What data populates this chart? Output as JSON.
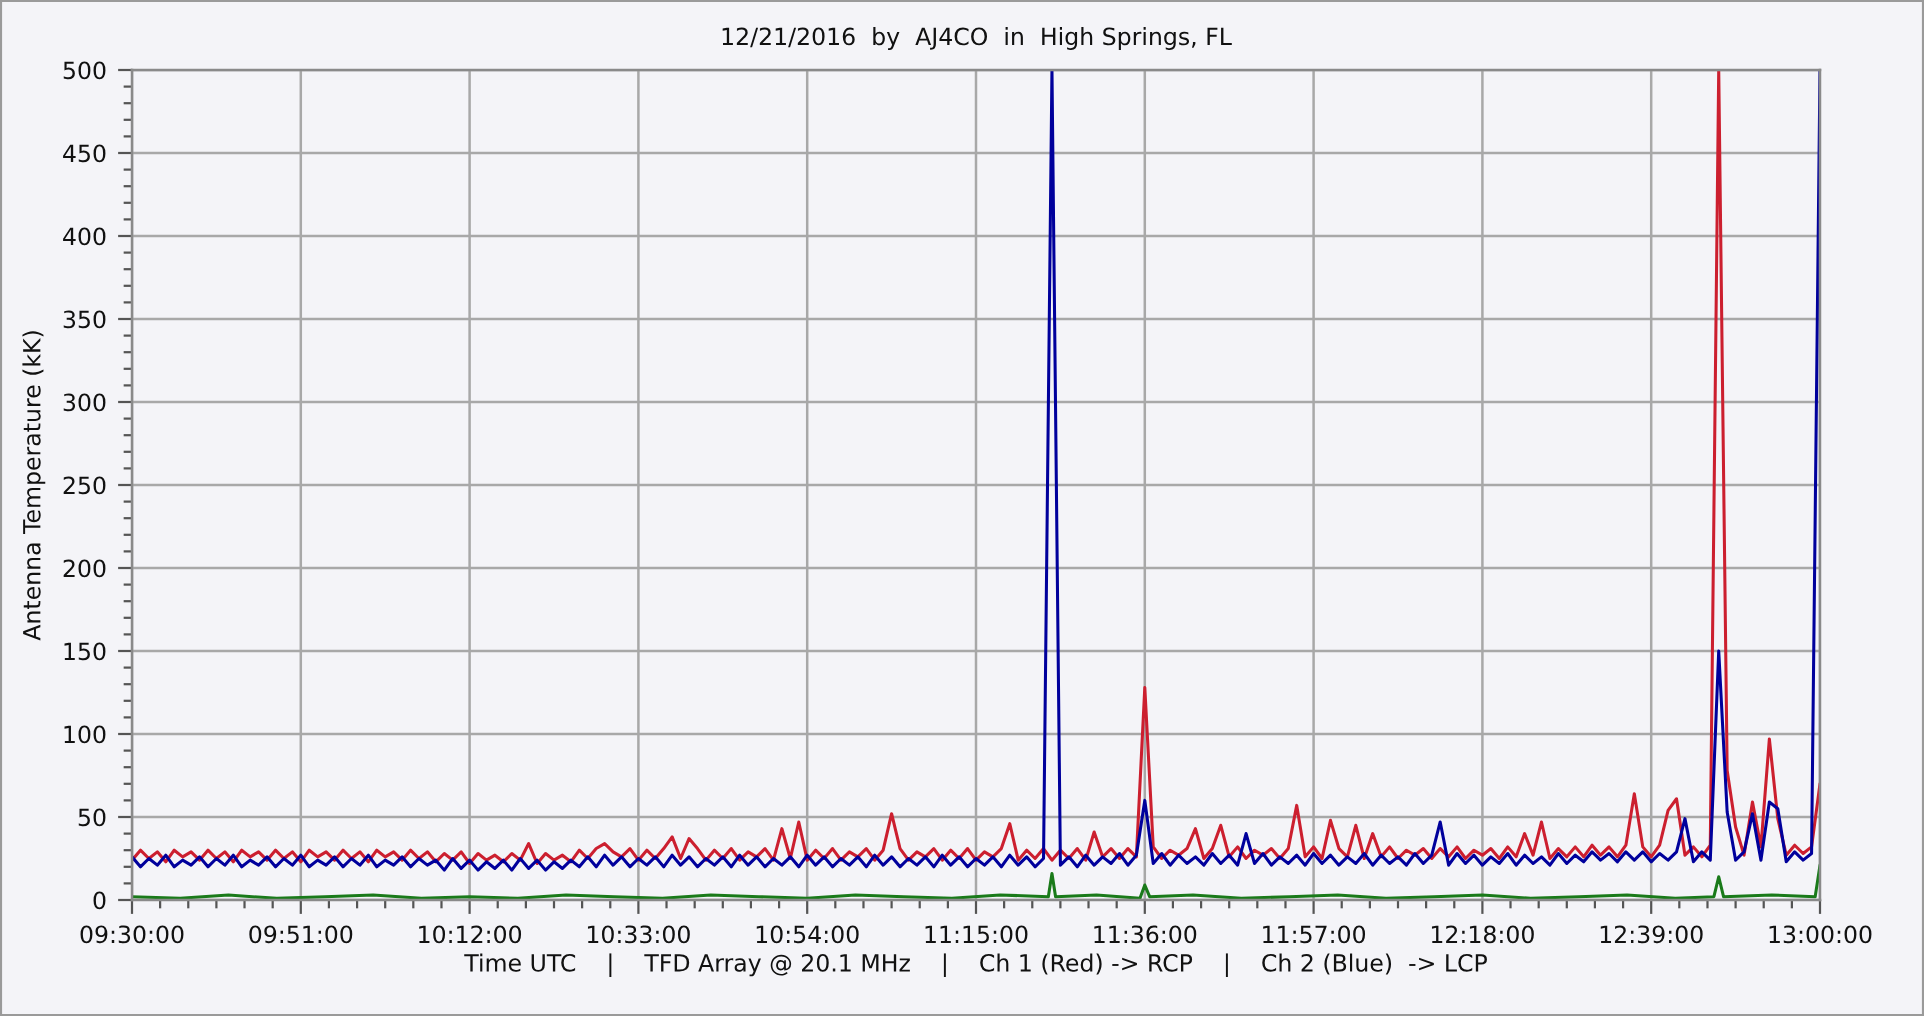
{
  "chart_data": {
    "type": "line",
    "title": "12/21/2016  by  AJ4CO  in  High Springs, FL",
    "xlabel": "Time UTC    |    TFD Array @ 20.1 MHz    |    Ch 1 (Red) -> RCP    |    Ch 2 (Blue)  -> LCP",
    "ylabel": "Antenna Temperature (kK)",
    "x": [
      9.5,
      9.5175,
      9.535,
      9.5525,
      9.57,
      9.5875,
      9.605,
      9.6225,
      9.64,
      9.6575,
      9.675,
      9.6925,
      9.71,
      9.7275,
      9.745,
      9.7625,
      9.78,
      9.7975,
      9.815,
      9.8325,
      9.85,
      9.8675,
      9.885,
      9.9025,
      9.92,
      9.9375,
      9.955,
      9.9725,
      9.99,
      10.0075,
      10.025,
      10.0425,
      10.06,
      10.0775,
      10.095,
      10.1125,
      10.13,
      10.1475,
      10.165,
      10.1825,
      10.2,
      10.2175,
      10.235,
      10.2525,
      10.27,
      10.2875,
      10.305,
      10.3225,
      10.34,
      10.3575,
      10.375,
      10.3925,
      10.41,
      10.4275,
      10.445,
      10.4625,
      10.48,
      10.4975,
      10.515,
      10.5325,
      10.55,
      10.5675,
      10.585,
      10.6025,
      10.62,
      10.6375,
      10.655,
      10.6725,
      10.69,
      10.7075,
      10.725,
      10.7425,
      10.76,
      10.7775,
      10.795,
      10.8125,
      10.83,
      10.8475,
      10.865,
      10.8825,
      10.9,
      10.9175,
      10.935,
      10.9525,
      10.97,
      10.9875,
      11.005,
      11.0225,
      11.04,
      11.0575,
      11.075,
      11.0925,
      11.11,
      11.1275,
      11.145,
      11.1625,
      11.18,
      11.1975,
      11.215,
      11.2325,
      11.25,
      11.2675,
      11.285,
      11.3025,
      11.32,
      11.3375,
      11.355,
      11.3725,
      11.39,
      11.4075,
      11.425,
      11.4425,
      11.46,
      11.4775,
      11.495,
      11.5125,
      11.53,
      11.5475,
      11.565,
      11.5825,
      11.6,
      11.6175,
      11.635,
      11.6525,
      11.67,
      11.6875,
      11.705,
      11.7225,
      11.74,
      11.7575,
      11.775,
      11.7925,
      11.81,
      11.8275,
      11.845,
      11.8625,
      11.88,
      11.8975,
      11.915,
      11.9325,
      11.95,
      11.9675,
      11.985,
      12.0025,
      12.02,
      12.0375,
      12.055,
      12.0725,
      12.09,
      12.1075,
      12.125,
      12.1425,
      12.16,
      12.1775,
      12.195,
      12.2125,
      12.23,
      12.2475,
      12.265,
      12.2825,
      12.3,
      12.3175,
      12.335,
      12.3525,
      12.37,
      12.3875,
      12.405,
      12.4225,
      12.44,
      12.4575,
      12.475,
      12.4925,
      12.51,
      12.5275,
      12.545,
      12.5625,
      12.58,
      12.5975,
      12.615,
      12.6325,
      12.65,
      12.6675,
      12.685,
      12.7025,
      12.72,
      12.7375,
      12.755,
      12.7725,
      12.79,
      12.8075,
      12.825,
      12.8425,
      12.86,
      12.8775,
      12.895,
      12.9125,
      12.93,
      12.9475,
      12.965,
      12.9825,
      13.0
    ],
    "series": [
      {
        "color": "#cc1f2f",
        "values": [
          24,
          30,
          25,
          29,
          23,
          30,
          26,
          29,
          24,
          30,
          25,
          29,
          23,
          30,
          26,
          29,
          24,
          30,
          25,
          29,
          23,
          30,
          26,
          29,
          24,
          30,
          25,
          29,
          23,
          30,
          26,
          29,
          24,
          30,
          25,
          29,
          23,
          28,
          24,
          29,
          22,
          28,
          24,
          27,
          23,
          28,
          24,
          34,
          22,
          28,
          24,
          27,
          23,
          30,
          25,
          31,
          34,
          29,
          26,
          31,
          24,
          30,
          25,
          31,
          38,
          25,
          37,
          31,
          24,
          30,
          25,
          31,
          24,
          29,
          26,
          31,
          24,
          43,
          25,
          47,
          24,
          30,
          25,
          31,
          24,
          29,
          26,
          31,
          24,
          30,
          52,
          31,
          24,
          29,
          26,
          31,
          24,
          30,
          25,
          31,
          24,
          29,
          26,
          31,
          46,
          24,
          30,
          25,
          31,
          24,
          30,
          25,
          31,
          24,
          41,
          26,
          31,
          25,
          31,
          26,
          128,
          32,
          25,
          30,
          27,
          31,
          43,
          25,
          31,
          45,
          26,
          32,
          25,
          30,
          27,
          31,
          25,
          31,
          57,
          26,
          32,
          25,
          48,
          31,
          26,
          45,
          25,
          40,
          26,
          32,
          25,
          30,
          27,
          31,
          25,
          31,
          26,
          32,
          25,
          30,
          27,
          31,
          25,
          32,
          26,
          40,
          27,
          47,
          25,
          31,
          26,
          32,
          26,
          33,
          27,
          32,
          26,
          33,
          64,
          32,
          26,
          33,
          54,
          61,
          27,
          32,
          26,
          33,
          500,
          78,
          44,
          27,
          59,
          32,
          97,
          49,
          27,
          33,
          28,
          32,
          70
        ]
      },
      {
        "color": "#00009c",
        "values": [
          26,
          20,
          25,
          21,
          27,
          20,
          24,
          21,
          26,
          20,
          25,
          21,
          27,
          20,
          24,
          21,
          26,
          20,
          25,
          21,
          27,
          20,
          24,
          21,
          26,
          20,
          25,
          21,
          27,
          20,
          24,
          21,
          26,
          20,
          25,
          21,
          24,
          18,
          25,
          19,
          24,
          18,
          23,
          19,
          24,
          18,
          25,
          19,
          24,
          18,
          23,
          19,
          24,
          20,
          26,
          20,
          27,
          21,
          26,
          20,
          25,
          21,
          26,
          20,
          27,
          21,
          26,
          20,
          25,
          21,
          26,
          20,
          27,
          21,
          26,
          20,
          25,
          21,
          26,
          20,
          27,
          21,
          26,
          20,
          25,
          21,
          26,
          20,
          27,
          21,
          26,
          20,
          25,
          21,
          26,
          20,
          27,
          21,
          26,
          20,
          25,
          21,
          26,
          20,
          27,
          21,
          26,
          20,
          25,
          500,
          21,
          26,
          20,
          27,
          21,
          26,
          22,
          28,
          21,
          27,
          60,
          22,
          28,
          21,
          27,
          22,
          26,
          21,
          28,
          22,
          27,
          21,
          40,
          22,
          28,
          21,
          26,
          22,
          27,
          21,
          28,
          22,
          27,
          21,
          26,
          22,
          28,
          21,
          27,
          22,
          26,
          21,
          28,
          22,
          27,
          47,
          21,
          28,
          22,
          27,
          21,
          26,
          22,
          28,
          21,
          27,
          22,
          26,
          21,
          28,
          22,
          27,
          23,
          29,
          24,
          28,
          23,
          29,
          24,
          29,
          23,
          28,
          24,
          29,
          49,
          23,
          29,
          24,
          150,
          53,
          24,
          29,
          52,
          24,
          59,
          55,
          23,
          29,
          24,
          28,
          500
        ]
      },
      {
        "color": "#1a7a1a",
        "x": [
          9.5,
          9.6,
          9.7,
          9.8,
          9.9,
          10.0,
          10.1,
          10.2,
          10.3,
          10.4,
          10.5,
          10.6,
          10.7,
          10.8,
          10.9,
          11.0,
          11.1,
          11.2,
          11.3,
          11.4,
          11.4075,
          11.415,
          11.5,
          11.59,
          11.6,
          11.61,
          11.7,
          11.8,
          11.9,
          12.0,
          12.1,
          12.2,
          12.3,
          12.4,
          12.5,
          12.6,
          12.7,
          12.78,
          12.79,
          12.8,
          12.9,
          12.99,
          13.0
        ],
        "values": [
          2,
          1,
          3,
          1,
          2,
          3,
          1,
          2,
          1,
          3,
          2,
          1,
          3,
          2,
          1,
          3,
          2,
          1,
          3,
          2,
          16,
          2,
          3,
          1,
          9,
          2,
          3,
          1,
          2,
          3,
          1,
          2,
          3,
          1,
          2,
          3,
          1,
          2,
          14,
          2,
          3,
          2,
          21
        ]
      }
    ],
    "xlim": [
      9.5,
      13.0
    ],
    "xticks": [
      {
        "value": 9.5,
        "label": "09:30:00"
      },
      {
        "value": 9.5583,
        "label": null
      },
      {
        "value": 9.6167,
        "label": null
      },
      {
        "value": 9.675,
        "label": null
      },
      {
        "value": 9.7333,
        "label": null
      },
      {
        "value": 9.7917,
        "label": null
      },
      {
        "value": 9.85,
        "label": "09:51:00"
      },
      {
        "value": 9.9083,
        "label": null
      },
      {
        "value": 9.9667,
        "label": null
      },
      {
        "value": 10.025,
        "label": null
      },
      {
        "value": 10.0833,
        "label": null
      },
      {
        "value": 10.1417,
        "label": null
      },
      {
        "value": 10.2,
        "label": "10:12:00"
      },
      {
        "value": 10.2583,
        "label": null
      },
      {
        "value": 10.3167,
        "label": null
      },
      {
        "value": 10.375,
        "label": null
      },
      {
        "value": 10.4333,
        "label": null
      },
      {
        "value": 10.4917,
        "label": null
      },
      {
        "value": 10.55,
        "label": "10:33:00"
      },
      {
        "value": 10.6083,
        "label": null
      },
      {
        "value": 10.6667,
        "label": null
      },
      {
        "value": 10.725,
        "label": null
      },
      {
        "value": 10.7833,
        "label": null
      },
      {
        "value": 10.8417,
        "label": null
      },
      {
        "value": 10.9,
        "label": "10:54:00"
      },
      {
        "value": 10.9583,
        "label": null
      },
      {
        "value": 11.0167,
        "label": null
      },
      {
        "value": 11.075,
        "label": null
      },
      {
        "value": 11.1333,
        "label": null
      },
      {
        "value": 11.1917,
        "label": null
      },
      {
        "value": 11.25,
        "label": "11:15:00"
      },
      {
        "value": 11.3083,
        "label": null
      },
      {
        "value": 11.3667,
        "label": null
      },
      {
        "value": 11.425,
        "label": null
      },
      {
        "value": 11.4833,
        "label": null
      },
      {
        "value": 11.5417,
        "label": null
      },
      {
        "value": 11.6,
        "label": "11:36:00"
      },
      {
        "value": 11.6583,
        "label": null
      },
      {
        "value": 11.7167,
        "label": null
      },
      {
        "value": 11.775,
        "label": null
      },
      {
        "value": 11.8333,
        "label": null
      },
      {
        "value": 11.8917,
        "label": null
      },
      {
        "value": 11.95,
        "label": "11:57:00"
      },
      {
        "value": 12.0083,
        "label": null
      },
      {
        "value": 12.0667,
        "label": null
      },
      {
        "value": 12.125,
        "label": null
      },
      {
        "value": 12.1833,
        "label": null
      },
      {
        "value": 12.2417,
        "label": null
      },
      {
        "value": 12.3,
        "label": "12:18:00"
      },
      {
        "value": 12.3583,
        "label": null
      },
      {
        "value": 12.4167,
        "label": null
      },
      {
        "value": 12.475,
        "label": null
      },
      {
        "value": 12.5333,
        "label": null
      },
      {
        "value": 12.5917,
        "label": null
      },
      {
        "value": 12.65,
        "label": "12:39:00"
      },
      {
        "value": 12.7083,
        "label": null
      },
      {
        "value": 12.7667,
        "label": null
      },
      {
        "value": 12.825,
        "label": null
      },
      {
        "value": 12.8833,
        "label": null
      },
      {
        "value": 12.9417,
        "label": null
      },
      {
        "value": 13.0,
        "label": "13:00:00"
      }
    ],
    "ylim": [
      0,
      500
    ],
    "yticks": [
      0,
      {
        "value": 10,
        "label": null
      },
      {
        "value": 20,
        "label": null
      },
      {
        "value": 30,
        "label": null
      },
      {
        "value": 40,
        "label": null
      },
      50,
      {
        "value": 60,
        "label": null
      },
      {
        "value": 70,
        "label": null
      },
      {
        "value": 80,
        "label": null
      },
      {
        "value": 90,
        "label": null
      },
      100,
      {
        "value": 110,
        "label": null
      },
      {
        "value": 120,
        "label": null
      },
      {
        "value": 130,
        "label": null
      },
      {
        "value": 140,
        "label": null
      },
      150,
      {
        "value": 160,
        "label": null
      },
      {
        "value": 170,
        "label": null
      },
      {
        "value": 180,
        "label": null
      },
      {
        "value": 190,
        "label": null
      },
      200,
      {
        "value": 210,
        "label": null
      },
      {
        "value": 220,
        "label": null
      },
      {
        "value": 230,
        "label": null
      },
      {
        "value": 240,
        "label": null
      },
      250,
      {
        "value": 260,
        "label": null
      },
      {
        "value": 270,
        "label": null
      },
      {
        "value": 280,
        "label": null
      },
      {
        "value": 290,
        "label": null
      },
      300,
      {
        "value": 310,
        "label": null
      },
      {
        "value": 320,
        "label": null
      },
      {
        "value": 330,
        "label": null
      },
      {
        "value": 340,
        "label": null
      },
      350,
      {
        "value": 360,
        "label": null
      },
      {
        "value": 370,
        "label": null
      },
      {
        "value": 380,
        "label": null
      },
      {
        "value": 390,
        "label": null
      },
      400,
      {
        "value": 410,
        "label": null
      },
      {
        "value": 420,
        "label": null
      },
      {
        "value": 430,
        "label": null
      },
      {
        "value": 440,
        "label": null
      },
      450,
      {
        "value": 460,
        "label": null
      },
      {
        "value": 470,
        "label": null
      },
      {
        "value": 480,
        "label": null
      },
      {
        "value": 490,
        "label": null
      },
      500
    ],
    "grid": true
  }
}
